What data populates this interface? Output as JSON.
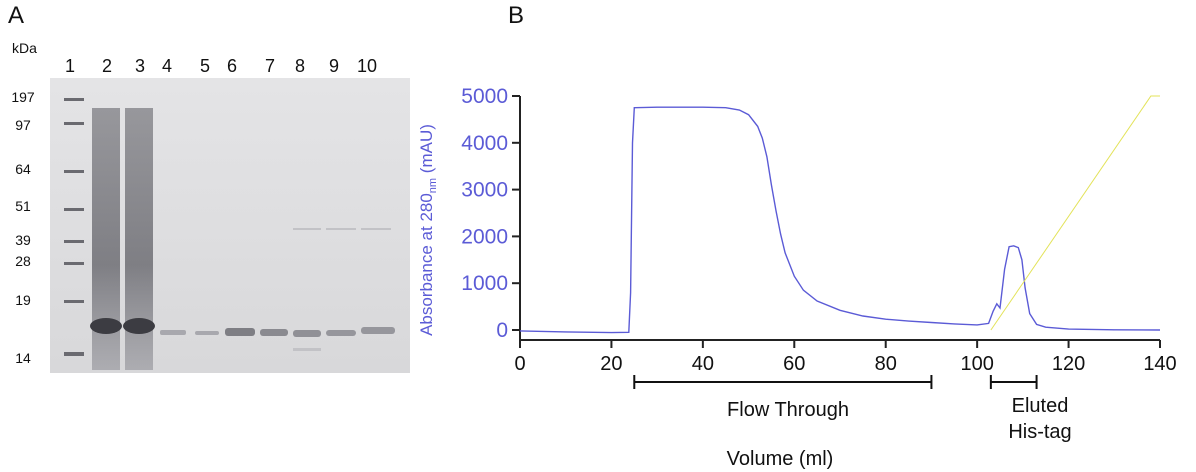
{
  "panelA": {
    "letter": "A",
    "kda_label": "kDa",
    "lanes": [
      "1",
      "2",
      "3",
      "4",
      "5",
      "6",
      "7",
      "8",
      "9",
      "10"
    ],
    "mw_markers": [
      "197",
      "97",
      "64",
      "51",
      "39",
      "28",
      "19",
      "14"
    ]
  },
  "panelB": {
    "letter": "B",
    "annotations": {
      "flow_through": "Flow Through",
      "eluted_line1": "Eluted",
      "eluted_line2": "His-tag"
    }
  },
  "chart_data": {
    "type": "line",
    "title": "",
    "xlabel": "Volume (ml)",
    "ylabel_main": "Absorbance at 280",
    "ylabel_sub": "nm",
    "ylabel_unit": " (mAU)",
    "xlim": [
      0,
      140
    ],
    "ylim": [
      0,
      5000
    ],
    "xticks": [
      0,
      20,
      40,
      60,
      80,
      100,
      120,
      140
    ],
    "yticks": [
      0,
      1000,
      2000,
      3000,
      4000,
      5000
    ],
    "grid": false,
    "series": [
      {
        "color": "#5b5bd6",
        "x": [
          0,
          10,
          20,
          23.8,
          24.2,
          24.6,
          25,
          30,
          35,
          40,
          45,
          48,
          50,
          52,
          53,
          54,
          55,
          56,
          57,
          58,
          60,
          62,
          65,
          70,
          75,
          80,
          85,
          90,
          95,
          100,
          102.5,
          103.5,
          104.3,
          105,
          106,
          107,
          108,
          109,
          109.8,
          110.5,
          111.5,
          113,
          115,
          120,
          130,
          140
        ],
        "y": [
          -20,
          -40,
          -55,
          -50,
          800,
          4000,
          4750,
          4760,
          4760,
          4760,
          4750,
          4700,
          4600,
          4350,
          4100,
          3700,
          3100,
          2550,
          2050,
          1650,
          1150,
          850,
          620,
          420,
          300,
          230,
          190,
          160,
          130,
          110,
          140,
          400,
          560,
          470,
          1300,
          1780,
          1800,
          1760,
          1500,
          900,
          350,
          120,
          60,
          20,
          5,
          0
        ]
      },
      {
        "color": "#e3e35a",
        "x": [
          103,
          138,
          140
        ],
        "y": [
          0,
          5000,
          5000
        ]
      }
    ]
  }
}
